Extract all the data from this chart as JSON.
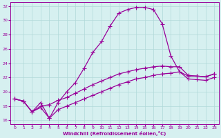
{
  "xlabel": "Windchill (Refroidissement éolien,°C)",
  "background_color": "#d6f0f0",
  "grid_color": "#b0d8d8",
  "line_color": "#990099",
  "xlim": [
    -0.5,
    23.5
  ],
  "ylim": [
    15.5,
    32.5
  ],
  "xticks": [
    0,
    1,
    2,
    3,
    4,
    5,
    6,
    7,
    8,
    9,
    10,
    11,
    12,
    13,
    14,
    15,
    16,
    17,
    18,
    19,
    20,
    21,
    22,
    23
  ],
  "yticks": [
    16,
    18,
    20,
    22,
    24,
    26,
    28,
    30,
    32
  ],
  "line1_x": [
    0,
    1,
    2,
    3,
    4,
    5,
    6,
    7,
    8,
    9,
    10,
    11,
    12,
    13,
    14,
    15,
    16,
    17,
    18,
    19,
    20,
    21,
    22,
    23
  ],
  "line1_y": [
    19.0,
    18.7,
    17.2,
    18.5,
    16.3,
    18.5,
    20.0,
    21.3,
    23.3,
    25.5,
    27.0,
    29.2,
    31.0,
    31.5,
    31.8,
    31.8,
    31.5,
    29.5,
    25.0,
    22.8,
    22.2,
    22.2,
    22.1,
    22.5
  ],
  "line2_x": [
    0,
    1,
    2,
    3,
    4,
    5,
    6,
    7,
    8,
    9,
    10,
    11,
    12,
    13,
    14,
    15,
    16,
    17,
    18,
    19,
    20,
    21,
    22,
    23
  ],
  "line2_y": [
    19.0,
    18.7,
    17.2,
    18.0,
    18.2,
    18.8,
    19.2,
    19.8,
    20.4,
    21.0,
    21.5,
    22.0,
    22.5,
    22.8,
    23.1,
    23.3,
    23.5,
    23.6,
    23.5,
    23.5,
    22.3,
    22.2,
    22.1,
    22.5
  ],
  "line3_x": [
    0,
    1,
    2,
    3,
    4,
    5,
    6,
    7,
    8,
    9,
    10,
    11,
    12,
    13,
    14,
    15,
    16,
    17,
    18,
    19,
    20,
    21,
    22,
    23
  ],
  "line3_y": [
    19.0,
    18.7,
    17.2,
    17.8,
    16.3,
    17.5,
    18.0,
    18.5,
    19.0,
    19.5,
    20.0,
    20.5,
    21.0,
    21.4,
    21.8,
    22.0,
    22.3,
    22.5,
    22.6,
    22.8,
    21.8,
    21.7,
    21.6,
    22.0
  ]
}
